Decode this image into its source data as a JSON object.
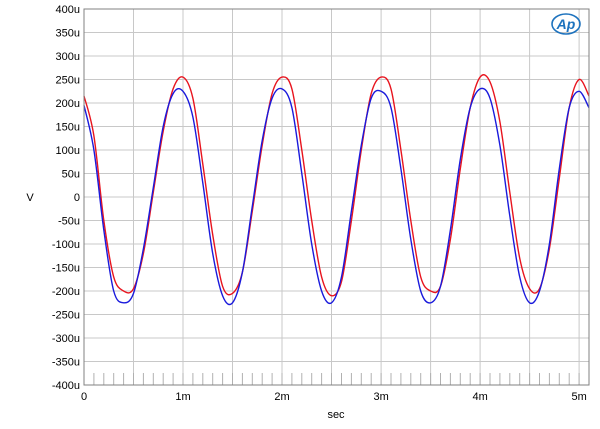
{
  "chart_data": {
    "type": "line",
    "title": "",
    "xlabel": "sec",
    "ylabel": "V",
    "xlim": [
      0,
      0.0051
    ],
    "ylim": [
      -0.0004,
      0.0004
    ],
    "grid": true,
    "x_ticks": [
      {
        "value": 0,
        "label": "0"
      },
      {
        "value": 0.001,
        "label": "1m"
      },
      {
        "value": 0.002,
        "label": "2m"
      },
      {
        "value": 0.003,
        "label": "3m"
      },
      {
        "value": 0.004,
        "label": "4m"
      },
      {
        "value": 0.005,
        "label": "5m"
      }
    ],
    "y_ticks": [
      {
        "value": 0.0004,
        "label": "400u"
      },
      {
        "value": 0.00035,
        "label": "350u"
      },
      {
        "value": 0.0003,
        "label": "300u"
      },
      {
        "value": 0.00025,
        "label": "250u"
      },
      {
        "value": 0.0002,
        "label": "200u"
      },
      {
        "value": 0.00015,
        "label": "150u"
      },
      {
        "value": 0.0001,
        "label": "100u"
      },
      {
        "value": 5e-05,
        "label": "50u"
      },
      {
        "value": 0,
        "label": "0"
      },
      {
        "value": -5e-05,
        "label": "-50u"
      },
      {
        "value": -0.0001,
        "label": "-100u"
      },
      {
        "value": -0.00015,
        "label": "-150u"
      },
      {
        "value": -0.0002,
        "label": "-200u"
      },
      {
        "value": -0.00025,
        "label": "-250u"
      },
      {
        "value": -0.0003,
        "label": "-300u"
      },
      {
        "value": -0.00035,
        "label": "-350u"
      },
      {
        "value": -0.0004,
        "label": "-400u"
      }
    ],
    "series": [
      {
        "color": "#e8141e",
        "x": [
          0,
          0.0001,
          0.0002,
          0.0003,
          0.0004,
          0.0005,
          0.0006,
          0.0007,
          0.0008,
          0.0009,
          0.001,
          0.0011,
          0.0012,
          0.0013,
          0.0014,
          0.0015,
          0.0016,
          0.0017,
          0.0018,
          0.0019,
          0.002,
          0.0021,
          0.0022,
          0.0023,
          0.0024,
          0.0025,
          0.0026,
          0.0027,
          0.0028,
          0.0029,
          0.003,
          0.0031,
          0.0032,
          0.0033,
          0.0034,
          0.0035,
          0.0036,
          0.0037,
          0.0038,
          0.0039,
          0.004,
          0.0041,
          0.0042,
          0.0043,
          0.0044,
          0.0045,
          0.0046,
          0.0047,
          0.0048,
          0.0049,
          0.005,
          0.0051
        ],
        "y": [
          0.000215,
          0.00013,
          -5e-05,
          -0.00017,
          -0.0002,
          -0.000195,
          -0.00012,
          1e-05,
          0.00014,
          0.00023,
          0.000255,
          0.00021,
          7e-05,
          -8e-05,
          -0.00019,
          -0.000205,
          -0.00016,
          -3e-05,
          0.00011,
          0.00022,
          0.000255,
          0.00023,
          0.0001,
          -5e-05,
          -0.00017,
          -0.00021,
          -0.00018,
          -5e-05,
          0.0001,
          0.00022,
          0.000255,
          0.00023,
          0.0001,
          -5e-05,
          -0.00017,
          -0.0002,
          -0.00019,
          -9e-05,
          6e-05,
          0.00019,
          0.000255,
          0.000245,
          0.00016,
          1e-05,
          -0.00013,
          -0.000195,
          -0.000195,
          -0.00011,
          4e-05,
          0.00019,
          0.00025,
          0.000215
        ]
      },
      {
        "color": "#1a1adc",
        "x": [
          0,
          0.0001,
          0.0002,
          0.0003,
          0.0004,
          0.0005,
          0.0006,
          0.0007,
          0.0008,
          0.0009,
          0.001,
          0.0011,
          0.0012,
          0.0013,
          0.0014,
          0.0015,
          0.0016,
          0.0017,
          0.0018,
          0.0019,
          0.002,
          0.0021,
          0.0022,
          0.0023,
          0.0024,
          0.0025,
          0.0026,
          0.0027,
          0.0028,
          0.0029,
          0.003,
          0.0031,
          0.0032,
          0.0033,
          0.0034,
          0.0035,
          0.0036,
          0.0037,
          0.0038,
          0.0039,
          0.004,
          0.0041,
          0.0042,
          0.0043,
          0.0044,
          0.0045,
          0.0046,
          0.0047,
          0.0048,
          0.0049,
          0.005,
          0.0051
        ],
        "y": [
          0.000195,
          0.0001,
          -7e-05,
          -0.0002,
          -0.000225,
          -0.000205,
          -0.00011,
          2e-05,
          0.00015,
          0.00022,
          0.000225,
          0.00017,
          3e-05,
          -0.00012,
          -0.00021,
          -0.000225,
          -0.00016,
          -2e-05,
          0.00012,
          0.00021,
          0.00023,
          0.00019,
          5e-05,
          -0.0001,
          -0.0002,
          -0.000225,
          -0.00017,
          -3e-05,
          0.00011,
          0.00021,
          0.000225,
          0.00019,
          6e-05,
          -9e-05,
          -0.0002,
          -0.000225,
          -0.00019,
          -7e-05,
          8e-05,
          0.00019,
          0.00023,
          0.00021,
          0.00011,
          -4e-05,
          -0.00017,
          -0.000225,
          -0.0002,
          -0.0001,
          6e-05,
          0.00019,
          0.000225,
          0.00019
        ]
      }
    ]
  },
  "logo": {
    "text": "Ap",
    "color": "#1e73be"
  }
}
